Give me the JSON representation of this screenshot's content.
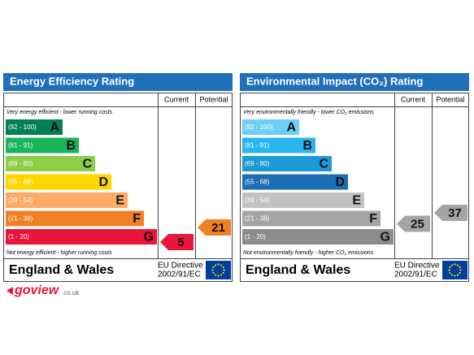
{
  "panels": [
    {
      "title": "Energy Efficiency Rating",
      "current_label": "Current",
      "potential_label": "Potential",
      "top_note": "Very energy efficient - lower running costs",
      "bottom_note": "Not energy efficient - higher running costs",
      "bands": [
        {
          "range": "(92 - 100)",
          "letter": "A",
          "color": "#008054"
        },
        {
          "range": "(81 - 91)",
          "letter": "B",
          "color": "#19b459"
        },
        {
          "range": "(69 - 80)",
          "letter": "C",
          "color": "#8dce46"
        },
        {
          "range": "(55 - 68)",
          "letter": "D",
          "color": "#ffd500"
        },
        {
          "range": "(39 - 54)",
          "letter": "E",
          "color": "#fcaa65"
        },
        {
          "range": "(21 - 38)",
          "letter": "F",
          "color": "#ef8023"
        },
        {
          "range": "(1 - 20)",
          "letter": "G",
          "color": "#e9153b"
        }
      ],
      "current": 5,
      "potential": 21,
      "country": "England & Wales",
      "directive": [
        "EU Directive",
        "2002/91/EC"
      ]
    },
    {
      "title": "Environmental Impact (CO₂) Rating",
      "current_label": "Current",
      "potential_label": "Potential",
      "top_note": "Very environmentally friendly - lower CO₂ emissions",
      "bottom_note": "Not environmentally friendly - higher CO₂ emissions",
      "bands": [
        {
          "range": "(92 - 100)",
          "letter": "A",
          "color": "#6dcff6"
        },
        {
          "range": "(81 - 91)",
          "letter": "B",
          "color": "#29b6f0"
        },
        {
          "range": "(69 - 80)",
          "letter": "C",
          "color": "#1b9ad6"
        },
        {
          "range": "(55 - 68)",
          "letter": "D",
          "color": "#1c6eb5"
        },
        {
          "range": "(39 - 54)",
          "letter": "E",
          "color": "#c2c2c2"
        },
        {
          "range": "(21 - 38)",
          "letter": "F",
          "color": "#a5a5a5"
        },
        {
          "range": "(1 - 20)",
          "letter": "G",
          "color": "#8c8c8c"
        }
      ],
      "current": 25,
      "potential": 37,
      "country": "England & Wales",
      "directive": [
        "EU Directive",
        "2002/91/EC"
      ],
      "arrow_color": "#a5a5a5"
    }
  ],
  "logo": {
    "name": "goview",
    "domain": ".co.uk"
  }
}
